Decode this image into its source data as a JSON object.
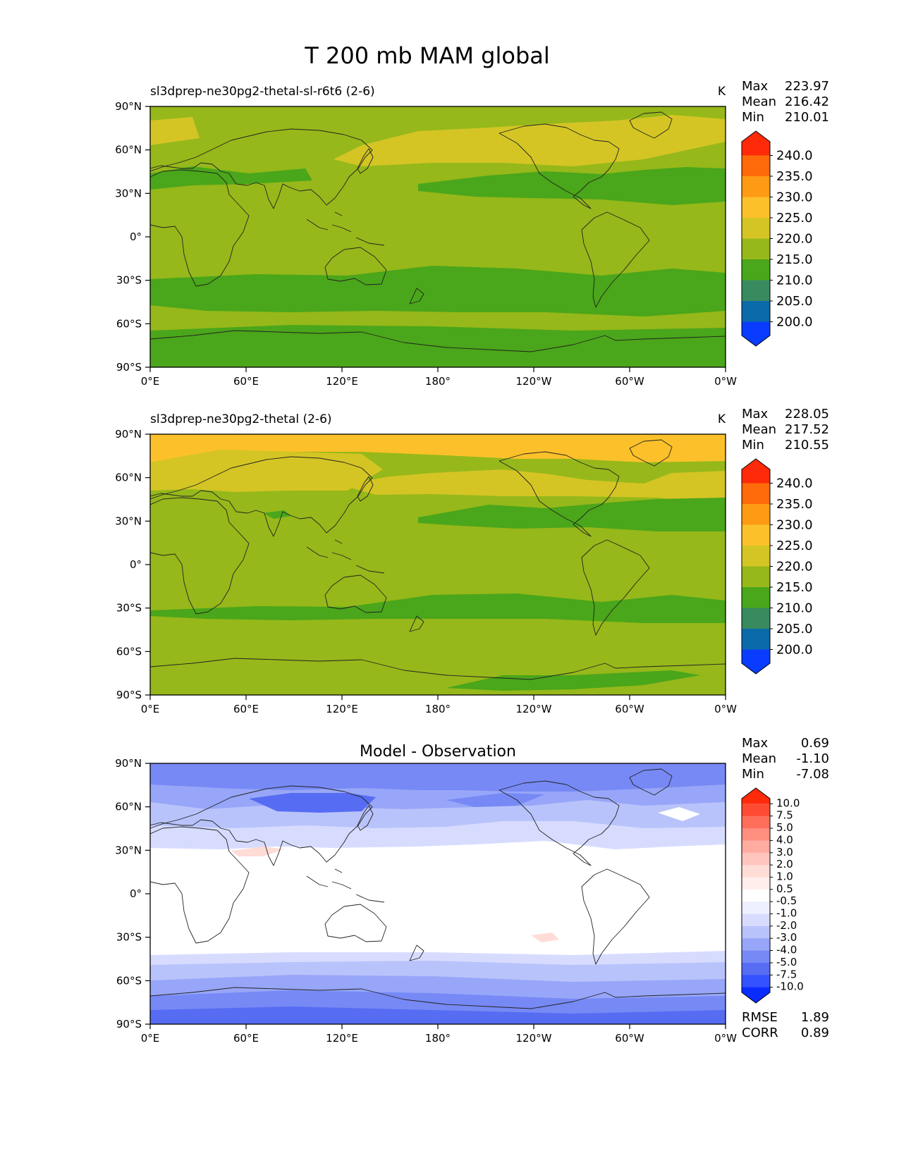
{
  "title": "T 200 mb MAM global",
  "lat_ticks": [
    "90°N",
    "60°N",
    "30°N",
    "0°",
    "30°S",
    "60°S",
    "90°S"
  ],
  "lon_ticks": [
    "0°E",
    "60°E",
    "120°E",
    "180°",
    "120°W",
    "60°W",
    "0°W"
  ],
  "panels": [
    {
      "title_left": "sl3dprep-ne30pg2-thetal-sl-r6t6 (2-6)",
      "title_center": "",
      "units": "K",
      "stats": [
        {
          "label": "Max",
          "value": "223.97"
        },
        {
          "label": "Mean",
          "value": "216.42"
        },
        {
          "label": "Min",
          "value": "210.01"
        }
      ],
      "colorbar_labels": [
        "240.0",
        "235.0",
        "230.0",
        "225.0",
        "220.0",
        "215.0",
        "210.0",
        "205.0",
        "200.0"
      ],
      "metrics": []
    },
    {
      "title_left": "sl3dprep-ne30pg2-thetal (2-6)",
      "title_center": "",
      "units": "K",
      "stats": [
        {
          "label": "Max",
          "value": "228.05"
        },
        {
          "label": "Mean",
          "value": "217.52"
        },
        {
          "label": "Min",
          "value": "210.55"
        }
      ],
      "colorbar_labels": [
        "240.0",
        "235.0",
        "230.0",
        "225.0",
        "220.0",
        "215.0",
        "210.0",
        "205.0",
        "200.0"
      ],
      "metrics": []
    },
    {
      "title_left": "",
      "title_center": "Model - Observation",
      "units": "",
      "stats": [
        {
          "label": "Max",
          "value": "0.69"
        },
        {
          "label": "Mean",
          "value": "-1.10"
        },
        {
          "label": "Min",
          "value": "-7.08"
        }
      ],
      "colorbar_labels": [
        "10.0",
        "7.5",
        "5.0",
        "4.0",
        "3.0",
        "2.0",
        "1.0",
        "0.5",
        "-0.5",
        "-1.0",
        "-2.0",
        "-3.0",
        "-4.0",
        "-5.0",
        "-7.5",
        "-10.0"
      ],
      "metrics": [
        {
          "label": "RMSE",
          "value": "1.89"
        },
        {
          "label": "CORR",
          "value": "0.89"
        }
      ]
    }
  ],
  "colors": {
    "abs_colorbar": [
      "#ff2a0a",
      "#ff6a0a",
      "#ff9a14",
      "#fcc12a",
      "#d4c524",
      "#96b81a",
      "#4aa61a",
      "#3a8a60",
      "#0a6aaa",
      "#0a3cff"
    ],
    "diff_colorbar": [
      "#ff2a0a",
      "#ff4b33",
      "#ff6e5a",
      "#ff8f7e",
      "#ffaba0",
      "#ffc4bc",
      "#ffdcd6",
      "#ffeeeb",
      "#ffffff",
      "#eef0ff",
      "#d7dcff",
      "#b9c3fb",
      "#97a6f8",
      "#7789f5",
      "#566cf2",
      "#3452ff",
      "#0a2cff"
    ]
  }
}
